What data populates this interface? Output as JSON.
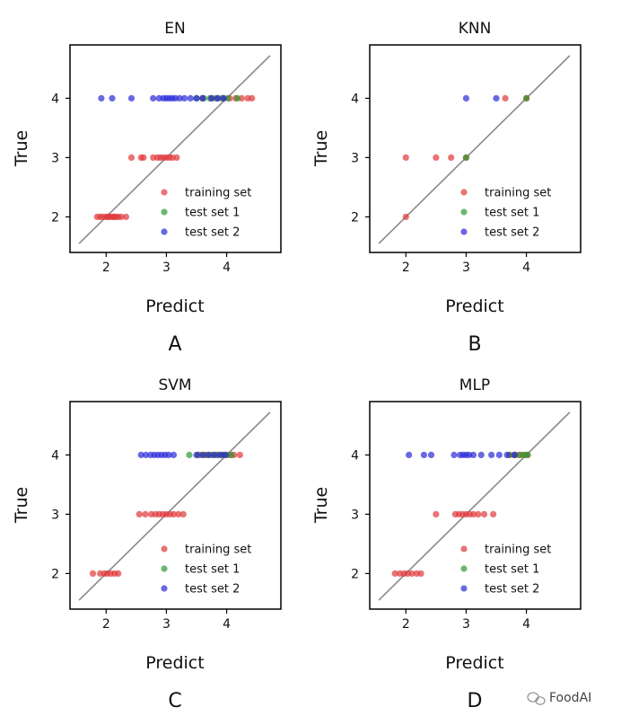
{
  "chart_data": [
    {
      "type": "scatter",
      "title": "EN",
      "panel_label": "A",
      "xlabel": "Predict",
      "ylabel": "True",
      "xlim": [
        1.4,
        4.9
      ],
      "ylim": [
        1.4,
        4.9
      ],
      "xticks": [
        "2",
        "3",
        "4"
      ],
      "yticks": [
        "2",
        "3",
        "4"
      ],
      "diagonal": true,
      "legend_position": "lower-right",
      "series": [
        {
          "name": "training set",
          "color": "#e0383b",
          "points": [
            [
              1.85,
              2
            ],
            [
              1.9,
              2
            ],
            [
              1.95,
              2
            ],
            [
              2.0,
              2
            ],
            [
              2.03,
              2
            ],
            [
              2.06,
              2
            ],
            [
              2.1,
              2
            ],
            [
              2.13,
              2
            ],
            [
              2.16,
              2
            ],
            [
              2.2,
              2
            ],
            [
              2.25,
              2
            ],
            [
              2.33,
              2
            ],
            [
              2.42,
              3
            ],
            [
              2.58,
              3
            ],
            [
              2.62,
              3
            ],
            [
              2.78,
              3
            ],
            [
              2.85,
              3
            ],
            [
              2.9,
              3
            ],
            [
              2.95,
              3
            ],
            [
              3.0,
              3
            ],
            [
              3.05,
              3
            ],
            [
              3.1,
              3
            ],
            [
              3.17,
              3
            ],
            [
              3.6,
              4
            ],
            [
              3.75,
              4
            ],
            [
              3.85,
              4
            ],
            [
              3.95,
              4
            ],
            [
              4.05,
              4
            ],
            [
              4.15,
              4
            ],
            [
              4.25,
              4
            ],
            [
              4.35,
              4
            ],
            [
              4.42,
              4
            ]
          ]
        },
        {
          "name": "test set 1",
          "color": "#2e9a33",
          "points": [
            [
              3.5,
              4
            ],
            [
              3.62,
              4
            ],
            [
              3.72,
              4
            ],
            [
              3.82,
              4
            ],
            [
              3.92,
              4
            ],
            [
              4.02,
              4
            ],
            [
              4.18,
              4
            ]
          ]
        },
        {
          "name": "test set 2",
          "color": "#2a2ad8",
          "points": [
            [
              1.92,
              4
            ],
            [
              2.1,
              4
            ],
            [
              2.42,
              4
            ],
            [
              2.78,
              4
            ],
            [
              2.88,
              4
            ],
            [
              2.95,
              4
            ],
            [
              3.0,
              4
            ],
            [
              3.05,
              4
            ],
            [
              3.1,
              4
            ],
            [
              3.15,
              4
            ],
            [
              3.22,
              4
            ],
            [
              3.3,
              4
            ],
            [
              3.4,
              4
            ],
            [
              3.5,
              4
            ],
            [
              3.6,
              4
            ],
            [
              3.75,
              4
            ],
            [
              3.85,
              4
            ],
            [
              3.95,
              4
            ]
          ]
        }
      ]
    },
    {
      "type": "scatter",
      "title": "KNN",
      "panel_label": "B",
      "xlabel": "Predict",
      "ylabel": "True",
      "xlim": [
        1.4,
        4.9
      ],
      "ylim": [
        1.4,
        4.9
      ],
      "xticks": [
        "2",
        "3",
        "4"
      ],
      "yticks": [
        "2",
        "3",
        "4"
      ],
      "diagonal": true,
      "legend_position": "lower-right",
      "series": [
        {
          "name": "training set",
          "color": "#e0383b",
          "points": [
            [
              2.0,
              2
            ],
            [
              2.0,
              3
            ],
            [
              2.5,
              3
            ],
            [
              2.75,
              3
            ],
            [
              3.0,
              3
            ],
            [
              3.65,
              4
            ],
            [
              4.0,
              4
            ]
          ]
        },
        {
          "name": "test set 1",
          "color": "#2e9a33",
          "points": [
            [
              3.0,
              3
            ],
            [
              4.0,
              4
            ]
          ]
        },
        {
          "name": "test set 2",
          "color": "#2a2ad8",
          "points": [
            [
              3.0,
              4
            ],
            [
              3.5,
              4
            ]
          ]
        }
      ]
    },
    {
      "type": "scatter",
      "title": "SVM",
      "panel_label": "C",
      "xlabel": "Predict",
      "ylabel": "True",
      "xlim": [
        1.4,
        4.9
      ],
      "ylim": [
        1.4,
        4.9
      ],
      "xticks": [
        "2",
        "3",
        "4"
      ],
      "yticks": [
        "2",
        "3",
        "4"
      ],
      "diagonal": true,
      "legend_position": "lower-right",
      "series": [
        {
          "name": "training set",
          "color": "#e0383b",
          "points": [
            [
              1.78,
              2
            ],
            [
              1.9,
              2
            ],
            [
              1.97,
              2
            ],
            [
              2.02,
              2
            ],
            [
              2.08,
              2
            ],
            [
              2.14,
              2
            ],
            [
              2.2,
              2
            ],
            [
              2.55,
              3
            ],
            [
              2.65,
              3
            ],
            [
              2.75,
              3
            ],
            [
              2.82,
              3
            ],
            [
              2.88,
              3
            ],
            [
              2.94,
              3
            ],
            [
              3.0,
              3
            ],
            [
              3.06,
              3
            ],
            [
              3.12,
              3
            ],
            [
              3.2,
              3
            ],
            [
              3.28,
              3
            ],
            [
              3.55,
              4
            ],
            [
              3.65,
              4
            ],
            [
              3.75,
              4
            ],
            [
              3.85,
              4
            ],
            [
              3.95,
              4
            ],
            [
              4.05,
              4
            ],
            [
              4.12,
              4
            ],
            [
              4.22,
              4
            ]
          ]
        },
        {
          "name": "test set 1",
          "color": "#2e9a33",
          "points": [
            [
              3.38,
              4
            ],
            [
              3.52,
              4
            ],
            [
              3.62,
              4
            ],
            [
              3.7,
              4
            ],
            [
              3.78,
              4
            ],
            [
              3.86,
              4
            ],
            [
              3.93,
              4
            ],
            [
              4.0,
              4
            ],
            [
              4.08,
              4
            ]
          ]
        },
        {
          "name": "test set 2",
          "color": "#2a2ad8",
          "points": [
            [
              2.58,
              4
            ],
            [
              2.66,
              4
            ],
            [
              2.74,
              4
            ],
            [
              2.8,
              4
            ],
            [
              2.86,
              4
            ],
            [
              2.92,
              4
            ],
            [
              2.98,
              4
            ],
            [
              3.04,
              4
            ],
            [
              3.12,
              4
            ],
            [
              3.5,
              4
            ],
            [
              3.6,
              4
            ],
            [
              3.7,
              4
            ],
            [
              3.8,
              4
            ],
            [
              3.9,
              4
            ],
            [
              3.98,
              4
            ]
          ]
        }
      ]
    },
    {
      "type": "scatter",
      "title": "MLP",
      "panel_label": "D",
      "xlabel": "Predict",
      "ylabel": "True",
      "xlim": [
        1.4,
        4.9
      ],
      "ylim": [
        1.4,
        4.9
      ],
      "xticks": [
        "2",
        "3",
        "4"
      ],
      "yticks": [
        "2",
        "3",
        "4"
      ],
      "diagonal": true,
      "legend_position": "lower-right",
      "series": [
        {
          "name": "training set",
          "color": "#e0383b",
          "points": [
            [
              1.82,
              2
            ],
            [
              1.9,
              2
            ],
            [
              1.97,
              2
            ],
            [
              2.03,
              2
            ],
            [
              2.1,
              2
            ],
            [
              2.18,
              2
            ],
            [
              2.25,
              2
            ],
            [
              2.5,
              3
            ],
            [
              2.82,
              3
            ],
            [
              2.88,
              3
            ],
            [
              2.94,
              3
            ],
            [
              3.0,
              3
            ],
            [
              3.06,
              3
            ],
            [
              3.12,
              3
            ],
            [
              3.2,
              3
            ],
            [
              3.3,
              3
            ],
            [
              3.45,
              3
            ],
            [
              3.72,
              4
            ],
            [
              3.8,
              4
            ],
            [
              3.88,
              4
            ],
            [
              3.95,
              4
            ],
            [
              4.02,
              4
            ]
          ]
        },
        {
          "name": "test set 1",
          "color": "#2e9a33",
          "points": [
            [
              3.72,
              4
            ],
            [
              3.82,
              4
            ],
            [
              3.9,
              4
            ],
            [
              3.98,
              4
            ],
            [
              4.02,
              4
            ]
          ]
        },
        {
          "name": "test set 2",
          "color": "#2a2ad8",
          "points": [
            [
              2.05,
              4
            ],
            [
              2.3,
              4
            ],
            [
              2.42,
              4
            ],
            [
              2.8,
              4
            ],
            [
              2.9,
              4
            ],
            [
              2.95,
              4
            ],
            [
              3.0,
              4
            ],
            [
              3.05,
              4
            ],
            [
              3.12,
              4
            ],
            [
              3.25,
              4
            ],
            [
              3.42,
              4
            ],
            [
              3.55,
              4
            ],
            [
              3.68,
              4
            ],
            [
              3.8,
              4
            ]
          ]
        }
      ]
    }
  ],
  "watermark": "FoodAI"
}
